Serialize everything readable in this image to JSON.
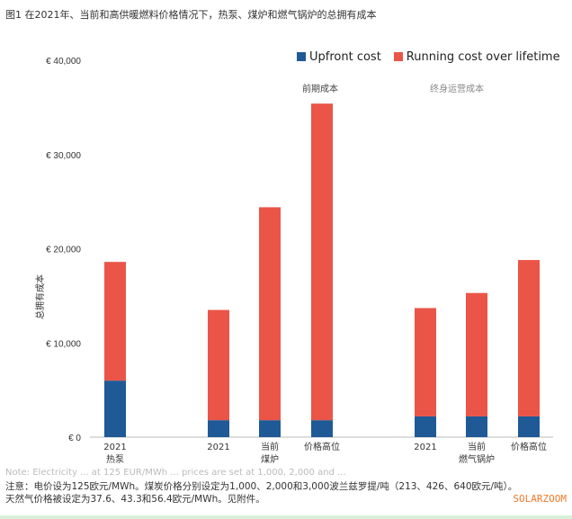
{
  "title": "图1 在2021年、当前和高供暖燃料价格情况下，热泵、煤炉和燃气锅炉的总拥有成本",
  "chart_data": {
    "type": "bar",
    "stacked": true,
    "ylabel": "总拥有成本",
    "ylim": [
      0,
      40000
    ],
    "yticks": [
      0,
      10000,
      20000,
      30000,
      40000
    ],
    "ytick_labels": [
      "€ 0",
      "€ 10,000",
      "€ 20,000",
      "€ 30,000",
      "€ 40,000"
    ],
    "categories": [
      "2021",
      "2021",
      "当前",
      "价格高位",
      "2021",
      "当前",
      "价格高位"
    ],
    "groups": [
      {
        "label": "热泵",
        "count": 1
      },
      {
        "label": "煤炉",
        "count": 3
      },
      {
        "label": "燃气锅炉",
        "count": 3
      }
    ],
    "series": [
      {
        "name": "Upfront cost",
        "color": "#1f5a96",
        "values": [
          6000,
          1800,
          1800,
          1800,
          2200,
          2200,
          2200
        ]
      },
      {
        "name": "Running cost over lifetime",
        "color": "#ea5548",
        "values": [
          12600,
          11700,
          22600,
          33600,
          11500,
          13100,
          16600
        ]
      }
    ],
    "legend_position": "top-right",
    "grid": false,
    "annotations": [
      "前期成本",
      "终身运营成本"
    ]
  },
  "notes": [
    "注意：电价设为125欧元/MWh。煤炭价格分别设定为1,000、2,000和3,000波兰兹罗提/吨（213、426、640欧元/吨）。",
    "天然气价格被设定为37.6、43.3和56.4欧元/MWh。见附件。"
  ],
  "ghost_text": "Note: Electricity ... at 125 EUR/MWh ... prices are set at 1,000, 2,000 and ...",
  "watermark": "SOLARZOOM"
}
